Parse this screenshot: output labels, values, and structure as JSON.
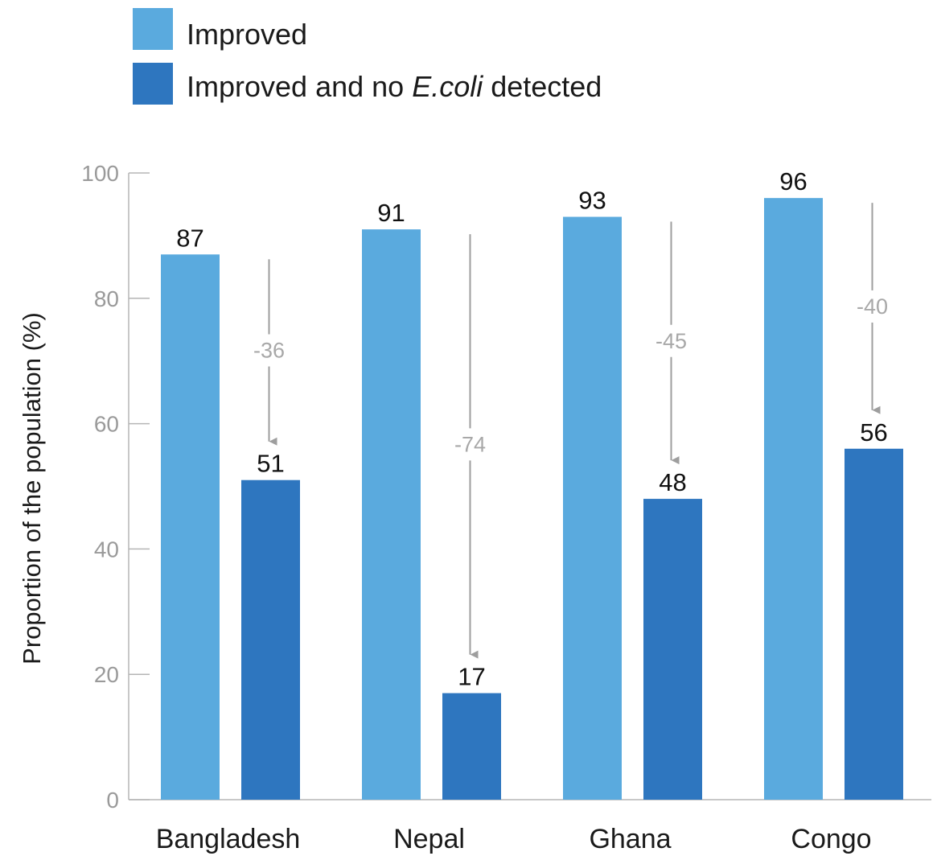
{
  "chart_data": {
    "type": "bar",
    "categories": [
      "Bangladesh",
      "Nepal",
      "Ghana",
      "Congo"
    ],
    "series": [
      {
        "name": "Improved",
        "values": [
          87,
          91,
          93,
          96
        ],
        "color": "#5aaade"
      },
      {
        "name": "Improved and no E.coli detected",
        "values": [
          51,
          17,
          48,
          56
        ],
        "color": "#2e76bf"
      }
    ],
    "legend": {
      "improved": "Improved",
      "improved_no_ecoli_prefix": "Improved and no ",
      "improved_no_ecoli_italic": "E.coli",
      "improved_no_ecoli_suffix": " detected",
      "position": "top-left"
    },
    "differences": [
      "-36",
      "-74",
      "-45",
      "-40"
    ],
    "ylabel": "Proportion of the population (%)",
    "xlabel": "",
    "ylim": [
      0,
      100
    ],
    "yticks": [
      0,
      20,
      40,
      60,
      80,
      100
    ],
    "grid": false,
    "arrow_color": "#9e9e9e"
  }
}
